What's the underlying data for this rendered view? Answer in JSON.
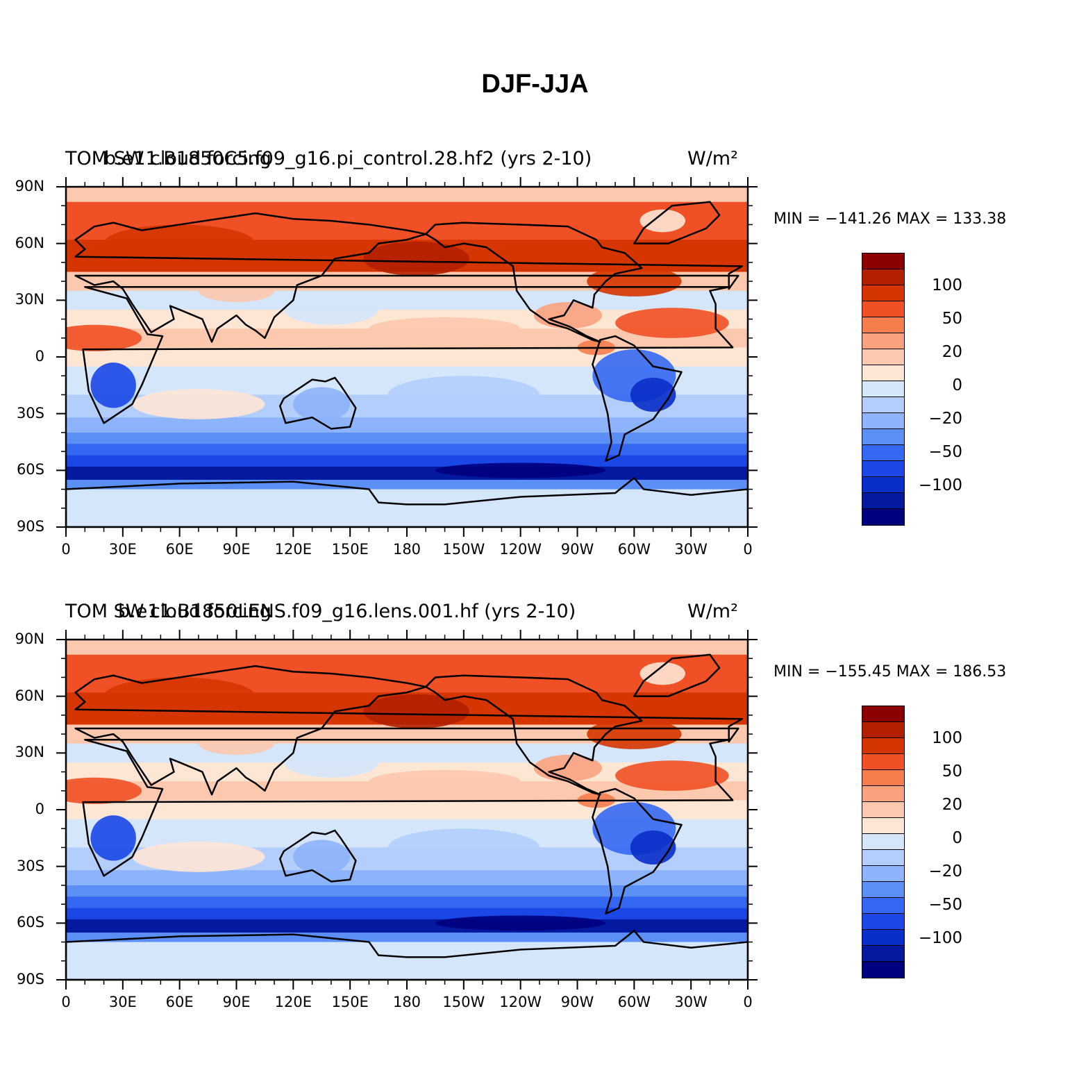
{
  "title": "DJF-JJA",
  "panels": [
    {
      "left_text": "TOM SW cloud forcing",
      "center_text": "b.e11.B1850C5.f09_g16.pi_control.28.hf2 (yrs 2-10)",
      "units": "W/m²",
      "min_max": "MIN = −141.26 MAX = 133.38"
    },
    {
      "left_text": "TOM SW cloud forcing",
      "center_text": "b.e11.B1850LENS.f09_g16.lens.001.hf (yrs 2-10)",
      "units": "W/m²",
      "min_max": "MIN = −155.45 MAX = 186.53"
    }
  ],
  "lat_ticks": [
    "90N",
    "60N",
    "30N",
    "0",
    "30S",
    "60S",
    "90S"
  ],
  "lon_ticks": [
    "0",
    "30E",
    "60E",
    "90E",
    "120E",
    "150E",
    "180",
    "150W",
    "120W",
    "90W",
    "60W",
    "30W",
    "0"
  ],
  "colorbar": {
    "colors": [
      "#8b0000",
      "#b22000",
      "#d53500",
      "#f05025",
      "#f57c4c",
      "#f9a27f",
      "#fcc8ae",
      "#fee6d5",
      "#d5e6fb",
      "#b3cefb",
      "#8db3fa",
      "#5b8ff5",
      "#3568f2",
      "#1a47e6",
      "#0a2ec8",
      "#031aa0",
      "#00007e"
    ],
    "labels": [
      "100",
      "50",
      "20",
      "0",
      "−20",
      "−50",
      "−100"
    ]
  }
}
